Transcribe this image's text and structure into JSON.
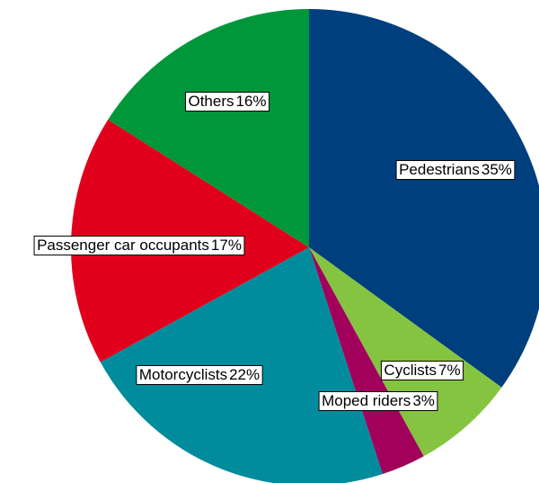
{
  "chart_data": {
    "type": "pie",
    "categories": [
      "Pedestrians",
      "Cyclists",
      "Moped riders",
      "Motorcyclists",
      "Passenger car occupants",
      "Others"
    ],
    "values": [
      35,
      7,
      3,
      22,
      17,
      16
    ],
    "value_labels": [
      "35%",
      "7%",
      "3%",
      "22%",
      "17%",
      "16%"
    ],
    "colors": [
      "#003f7d",
      "#85c441",
      "#a1005b",
      "#008c9c",
      "#e1001b",
      "#00973a"
    ]
  }
}
